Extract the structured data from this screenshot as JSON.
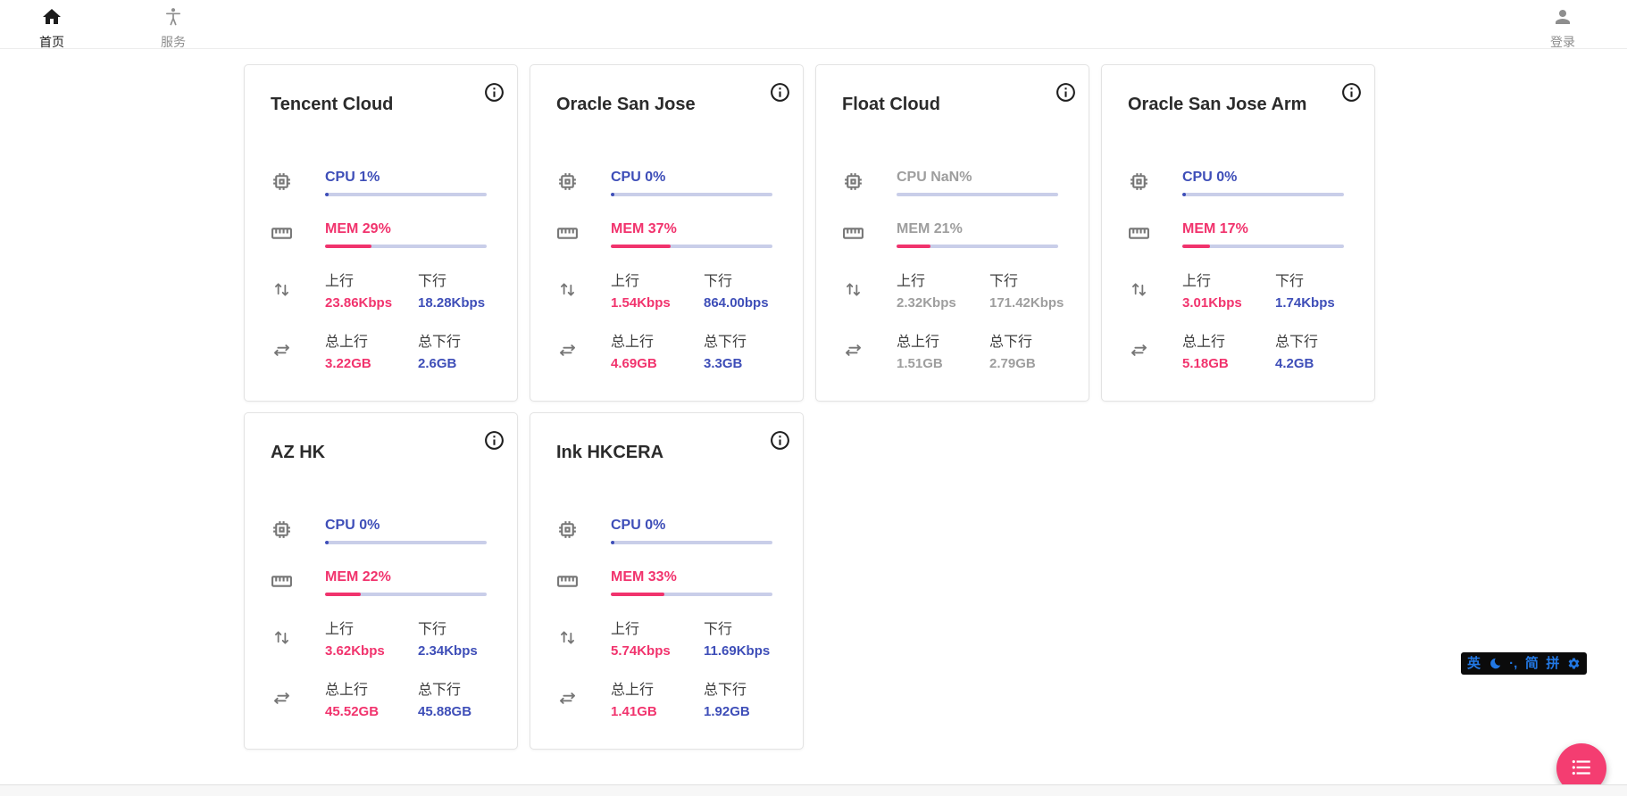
{
  "navbar": {
    "home": {
      "label": "首页"
    },
    "services": {
      "label": "服务"
    },
    "login": {
      "label": "登录"
    }
  },
  "stat_labels": {
    "up": "上行",
    "down": "下行",
    "total_up": "总上行",
    "total_down": "总下行"
  },
  "colors": {
    "cpu_blue": "#3E4EB8",
    "mem_pink": "#F1336D",
    "stale_gray": "#9E9E9E",
    "bar_track": "#C9CEE9",
    "fab_pink": "#F43D71",
    "ime_blue": "#2278E4"
  },
  "cards": [
    {
      "title": "Tencent Cloud",
      "status": "online",
      "cpu": {
        "label": "CPU 1%",
        "pct": 1
      },
      "mem": {
        "label": "MEM 29%",
        "pct": 29
      },
      "net": {
        "up": "23.86Kbps",
        "down": "18.28Kbps",
        "total_up": "3.22GB",
        "total_down": "2.6GB"
      }
    },
    {
      "title": "Oracle San Jose",
      "status": "online",
      "cpu": {
        "label": "CPU 0%",
        "pct": 0
      },
      "mem": {
        "label": "MEM 37%",
        "pct": 37
      },
      "net": {
        "up": "1.54Kbps",
        "down": "864.00bps",
        "total_up": "4.69GB",
        "total_down": "3.3GB"
      }
    },
    {
      "title": "Float Cloud",
      "status": "stale",
      "cpu": {
        "label": "CPU NaN%",
        "pct": null
      },
      "mem": {
        "label": "MEM 21%",
        "pct": 21
      },
      "net": {
        "up": "2.32Kbps",
        "down": "171.42Kbps",
        "total_up": "1.51GB",
        "total_down": "2.79GB"
      }
    },
    {
      "title": "Oracle San Jose Arm",
      "status": "online",
      "cpu": {
        "label": "CPU 0%",
        "pct": 0
      },
      "mem": {
        "label": "MEM 17%",
        "pct": 17
      },
      "net": {
        "up": "3.01Kbps",
        "down": "1.74Kbps",
        "total_up": "5.18GB",
        "total_down": "4.2GB"
      }
    },
    {
      "title": "AZ HK",
      "status": "online",
      "cpu": {
        "label": "CPU 0%",
        "pct": 0
      },
      "mem": {
        "label": "MEM 22%",
        "pct": 22
      },
      "net": {
        "up": "3.62Kbps",
        "down": "2.34Kbps",
        "total_up": "45.52GB",
        "total_down": "45.88GB"
      }
    },
    {
      "title": "Ink HKCERA",
      "status": "online",
      "cpu": {
        "label": "CPU 0%",
        "pct": 0
      },
      "mem": {
        "label": "MEM 33%",
        "pct": 33
      },
      "net": {
        "up": "5.74Kbps",
        "down": "11.69Kbps",
        "total_up": "1.41GB",
        "total_down": "1.92GB"
      }
    }
  ],
  "ime": {
    "english": "英",
    "punctuation": "·,",
    "simplified": "简",
    "pinyin": "拼"
  }
}
